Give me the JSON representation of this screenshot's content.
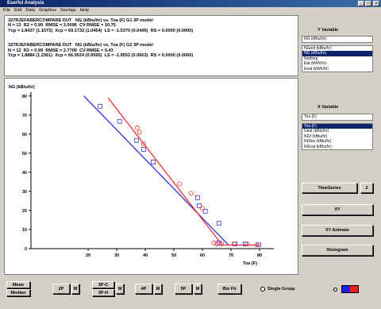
{
  "window": {
    "title": "Eserfol Analysis",
    "menu": [
      "File",
      "Edit",
      "Data",
      "Graphics",
      "Savings",
      "Help"
    ]
  },
  "results": [
    "327RJEFABERCOMPARE DUT   NG (kBtu/hr) vs. Toa (F) G1 3P model",
    "N = 13  R2 = 0.99  RMSE = 3.0096  CV-RMSE = 10.75",
    "Ycp = 1.8437 (1.1073)  Xcp = 69.1732 (1.0454)  LS = -1.5370 (0.0495)  RS = 0.0000 (0.0000)",
    "327RJEFABERCOMPARE DUT   NG (kBtu/hr) vs. Toa (F) G2 3P model",
    "N = 12  R2 = 0.99  RMSE = 2.7700  CV-RMSE = 9.43",
    "Ycp = 1.8884 (1.2361)  Xcp = 66.9524 (0.9565)  LS = -1.9552 (0.0663)  RS = 0.0000 (0.0000)"
  ],
  "y_variable": {
    "label": "Y Variable",
    "selected": "NG (kBtu/hr)",
    "options": [
      "NGest (kBtu/hr)",
      "NG (kBtu/hr)",
      "Nothing",
      "Eat (kWh/hr)",
      "Eeat (kWh/hr)"
    ]
  },
  "x_variable": {
    "label": "X Variable",
    "selected": "Toa (F)",
    "options": [
      "Toa (F)",
      "Ueat (kBtu/hr)",
      "NGf (kBtu/hr)",
      "NGhw (kBtu/hr)",
      "NGcat (kBtu/hr)"
    ]
  },
  "side_buttons": {
    "timeseries": "TimeSeries",
    "timeseries_count": "2",
    "xy": "XY",
    "xy_animate": "XY Animate",
    "histogram": "Histogram"
  },
  "bottom_buttons": {
    "mean": "Mean",
    "median": "Median",
    "two_p": "2P",
    "three_pc": "3P-C",
    "three_ph": "3P-H",
    "four_p": "4P",
    "five_p": "5P",
    "bin_fit": "Bin Fit",
    "m": "M",
    "single_group": "Single Group"
  },
  "chart_data": {
    "type": "scatter",
    "y_label": "NG (kBtu/hr)",
    "x_label": "Toa (F)",
    "xlim": [
      0,
      85
    ],
    "ylim": [
      0,
      82
    ],
    "xticks": [
      20,
      30,
      40,
      50,
      60,
      70,
      80
    ],
    "yticks": [
      0,
      10,
      20,
      30,
      40,
      50,
      60,
      70,
      80
    ],
    "series": [
      {
        "color": "#3a3ad8",
        "marker": "square",
        "x": [
          24.2,
          31,
          37,
          39.4,
          42.8,
          58.3,
          58.9,
          61,
          65.8,
          65.8,
          71.4,
          75,
          79.7
        ],
        "values": [
          74.6,
          66.7,
          56.7,
          52,
          45.4,
          26.7,
          22.5,
          19.6,
          13.3,
          3,
          2.5,
          2.5,
          2
        ]
      },
      {
        "color": "#ee3a3a",
        "marker": "circle",
        "x": [
          37.2,
          38,
          39.4,
          52,
          56,
          60,
          64,
          65,
          66.7,
          71,
          75.6,
          79
        ],
        "values": [
          63.3,
          61,
          55,
          34,
          29,
          21,
          3,
          2.5,
          2.5,
          2.5,
          2.5,
          2
        ]
      }
    ],
    "fits": [
      {
        "color": "#2222e0",
        "x": [
          18.5,
          69.17,
          80
        ],
        "values": [
          80,
          1.84,
          1.84
        ]
      },
      {
        "color": "#ff2020",
        "x": [
          27,
          66.95,
          80
        ],
        "values": [
          79,
          1.89,
          1.89
        ]
      }
    ]
  }
}
